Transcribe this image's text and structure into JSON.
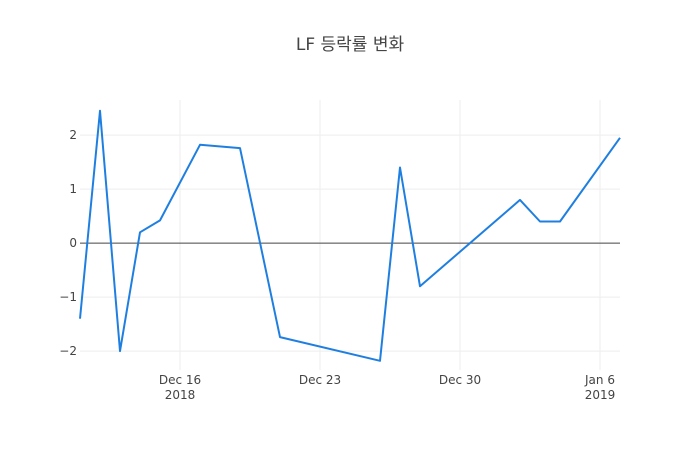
{
  "chart_data": {
    "type": "line",
    "title": "LF 등락률 변화",
    "xlabel": "",
    "ylabel": "",
    "x": [
      "2018-12-11",
      "2018-12-12",
      "2018-12-13",
      "2018-12-14",
      "2018-12-15",
      "2018-12-17",
      "2018-12-19",
      "2018-12-21",
      "2018-12-26",
      "2018-12-27",
      "2018-12-28",
      "2019-01-02",
      "2019-01-03",
      "2019-01-04",
      "2019-01-07"
    ],
    "y": [
      -1.4,
      2.45,
      -2.0,
      0.2,
      0.42,
      1.82,
      1.76,
      -1.74,
      -2.18,
      1.4,
      -0.8,
      0.8,
      0.4,
      0.4,
      1.95
    ],
    "xlim": [
      "2018-12-11",
      "2019-01-07"
    ],
    "ylim": [
      -2.35,
      2.65
    ],
    "x_ticks": [
      {
        "date": "2018-12-16",
        "label": "Dec 16",
        "sublabel": "2018"
      },
      {
        "date": "2018-12-23",
        "label": "Dec 23",
        "sublabel": ""
      },
      {
        "date": "2018-12-30",
        "label": "Dec 30",
        "sublabel": ""
      },
      {
        "date": "2019-01-06",
        "label": "Jan 6",
        "sublabel": "2019"
      }
    ],
    "y_ticks": [
      -2,
      -1,
      0,
      1,
      2
    ],
    "y_tick_labels": [
      "−2",
      "−1",
      "0",
      "1",
      "2"
    ],
    "grid": true,
    "zero_line": true,
    "line_color": "#1f7fe0",
    "grid_color": "#eeeeee",
    "zero_line_color": "#444444"
  }
}
